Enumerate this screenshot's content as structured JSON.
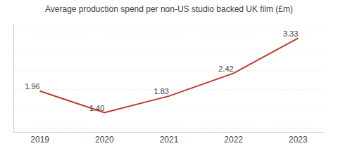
{
  "chart_data": {
    "type": "line",
    "title": "Average production spend per non-US studio backed UK film (£m)",
    "x": [
      2019,
      2020,
      2021,
      2022,
      2023
    ],
    "values": [
      1.96,
      1.4,
      1.83,
      2.42,
      3.33
    ],
    "value_labels": [
      "1.96",
      "1.40",
      "1.83",
      "2.42",
      "3.33"
    ],
    "data_labels": true,
    "color": "#c0392b",
    "xlim": [
      2018.6,
      2023.4
    ],
    "xticks": [
      2019,
      2020,
      2021,
      2022,
      2023
    ],
    "ylim": [
      0.9,
      3.7
    ],
    "yticks": [
      1.0,
      1.5,
      2.0,
      2.5,
      3.0,
      3.5
    ],
    "grid": true,
    "tick_labels": "x"
  }
}
